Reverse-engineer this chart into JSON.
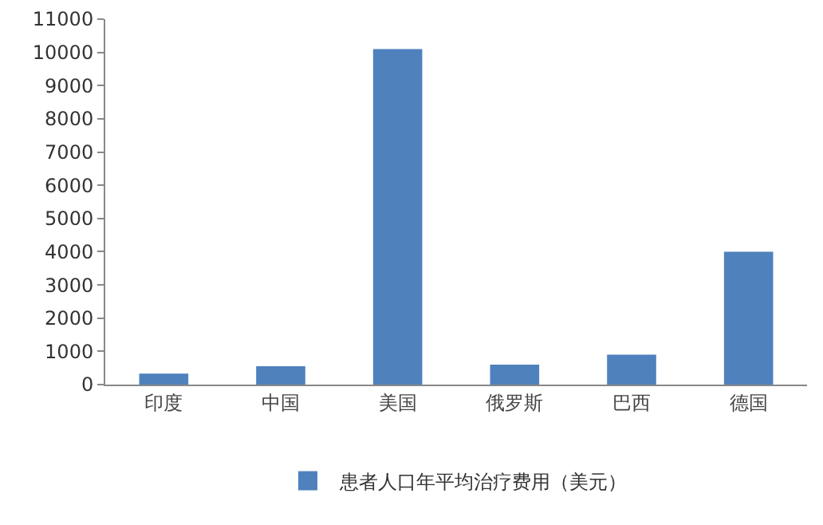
{
  "chart_data": {
    "type": "bar",
    "categories": [
      "印度",
      "中国",
      "美国",
      "俄罗斯",
      "巴西",
      "德国"
    ],
    "series": [
      {
        "name": "患者人口年平均治疗费用（美元）",
        "color": "#4f81bd",
        "values": [
          330,
          550,
          10100,
          600,
          900,
          4000
        ]
      }
    ],
    "ylim": [
      0,
      11000
    ],
    "yticks": [
      0,
      1000,
      2000,
      3000,
      4000,
      5000,
      6000,
      7000,
      8000,
      9000,
      10000,
      11000
    ],
    "grid": false,
    "legend": "bottom"
  }
}
